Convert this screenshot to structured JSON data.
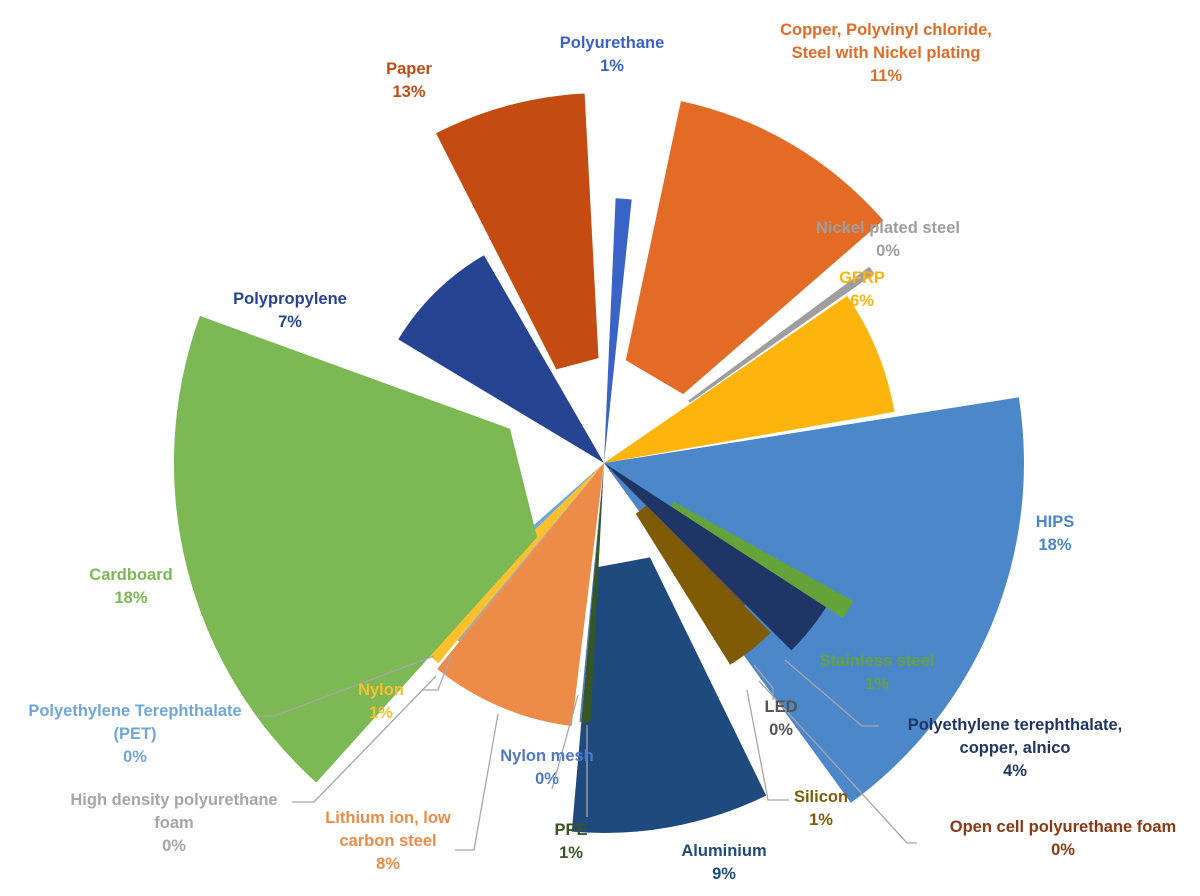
{
  "chart_data": {
    "type": "pie",
    "style": "exploded-polar-area",
    "slices": [
      {
        "name": "Polyurethane",
        "label_lines": [
          "Polyurethane"
        ],
        "value": 1,
        "value_label": "1%",
        "color": "#3a63c7"
      },
      {
        "name": "Copper, Polyvinyl chloride, Steel with Nickel plating",
        "label_lines": [
          "Copper, Polyvinyl chloride,",
          "Steel with Nickel plating"
        ],
        "value": 11,
        "value_label": "11%",
        "color": "#e46b26"
      },
      {
        "name": "Nickel plated steel",
        "label_lines": [
          "Nickel plated steel"
        ],
        "value": 0,
        "value_label": "0%",
        "color": "#9e9e9e"
      },
      {
        "name": "GFRP",
        "label_lines": [
          "GFRP"
        ],
        "value": 6,
        "value_label": "6%",
        "color": "#fdb40d"
      },
      {
        "name": "HIPS",
        "label_lines": [
          "HIPS"
        ],
        "value": 18,
        "value_label": "18%",
        "color": "#4c87ca"
      },
      {
        "name": "Stainless steel",
        "label_lines": [
          "Stainless steel"
        ],
        "value": 1,
        "value_label": "1%",
        "color": "#63a33a"
      },
      {
        "name": "Polyethylene terephthalate, copper, alnico",
        "label_lines": [
          "Polyethylene terephthalate,",
          "copper, alnico"
        ],
        "value": 4,
        "value_label": "4%",
        "color": "#1f3565"
      },
      {
        "name": "Open cell polyurethane foam",
        "label_lines": [
          "Open cell polyurethane foam"
        ],
        "value": 0,
        "value_label": "0%",
        "color": "#8e3714"
      },
      {
        "name": "LED",
        "label_lines": [
          "LED"
        ],
        "value": 0,
        "value_label": "0%",
        "color": "#545454"
      },
      {
        "name": "Silicon",
        "label_lines": [
          "Silicon"
        ],
        "value": 1,
        "value_label": "1%",
        "color": "#7f5b05"
      },
      {
        "name": "Aluminium",
        "label_lines": [
          "Aluminium"
        ],
        "value": 9,
        "value_label": "9%",
        "color": "#1f4a7d"
      },
      {
        "name": "PPE",
        "label_lines": [
          "PPE"
        ],
        "value": 1,
        "value_label": "1%",
        "color": "#375623"
      },
      {
        "name": "Nylon mesh",
        "label_lines": [
          "Nylon mesh"
        ],
        "value": 0,
        "value_label": "0%",
        "color": "#4f79c6"
      },
      {
        "name": "Lithium ion, low carbon steel",
        "label_lines": [
          "Lithium ion, low",
          "carbon steel"
        ],
        "value": 8,
        "value_label": "8%",
        "color": "#ed8b48"
      },
      {
        "name": "High density polyurethane foam",
        "label_lines": [
          "High density polyurethane",
          "foam"
        ],
        "value": 0,
        "value_label": "0%",
        "color": "#a6a6a6"
      },
      {
        "name": "Nylon",
        "label_lines": [
          "Nylon"
        ],
        "value": 1,
        "value_label": "1%",
        "color": "#fac02e"
      },
      {
        "name": "Polyethylene Terephthalate (PET)",
        "label_lines": [
          "Polyethylene Terephthalate",
          "(PET)"
        ],
        "value": 0,
        "value_label": "0%",
        "color": "#6fa6dc"
      },
      {
        "name": "Cardboard",
        "label_lines": [
          "Cardboard"
        ],
        "value": 18,
        "value_label": "18%",
        "color": "#7cb853"
      },
      {
        "name": "Polypropylene",
        "label_lines": [
          "Polypropylene"
        ],
        "value": 7,
        "value_label": "7%",
        "color": "#264492"
      },
      {
        "name": "Paper",
        "label_lines": [
          "Paper"
        ],
        "value": 13,
        "value_label": "13%",
        "color": "#c44b11"
      }
    ],
    "legend": "none",
    "data_labels": "category name and percentage"
  }
}
